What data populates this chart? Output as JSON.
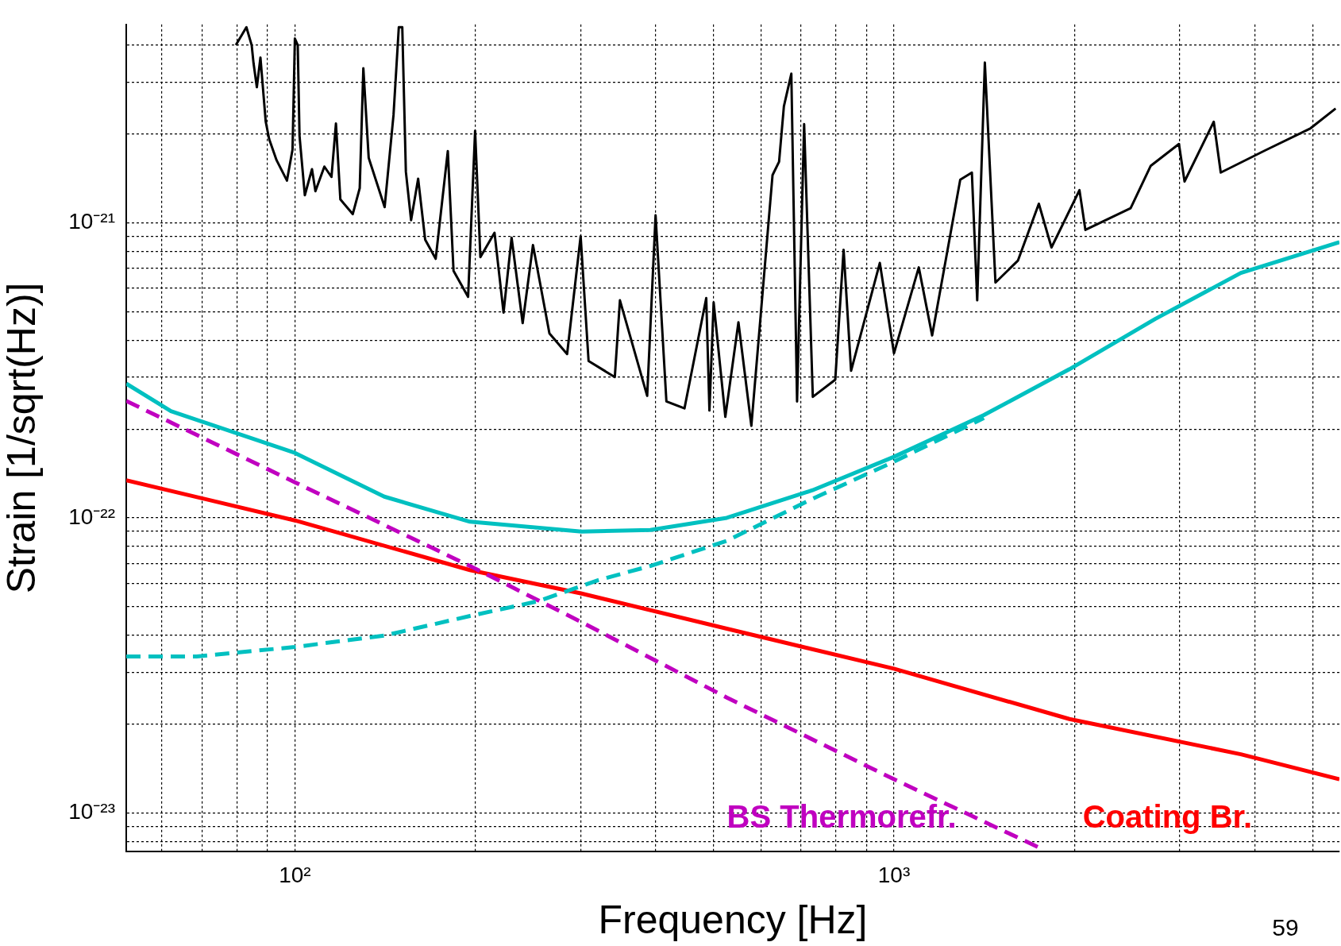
{
  "chart_data": {
    "type": "line",
    "xlabel": "Frequency [Hz]",
    "ylabel": "Strain [1/sqrt(Hz)]",
    "log": "xy",
    "grid": true,
    "marker": "none",
    "xlim": [
      52.3,
      5540
    ],
    "ylim": [
      7.4e-24,
      4.7e-21
    ],
    "xticks": [
      {
        "value": 60,
        "label": null
      },
      {
        "value": 70,
        "label": null
      },
      {
        "value": 80,
        "label": null
      },
      {
        "value": 90,
        "label": null
      },
      {
        "value": 100,
        "label": "10²"
      },
      {
        "value": 200,
        "label": null
      },
      {
        "value": 300,
        "label": null
      },
      {
        "value": 400,
        "label": null
      },
      {
        "value": 500,
        "label": null
      },
      {
        "value": 600,
        "label": null
      },
      {
        "value": 700,
        "label": null
      },
      {
        "value": 800,
        "label": null
      },
      {
        "value": 900,
        "label": null
      },
      {
        "value": 1000,
        "label": "10³"
      },
      {
        "value": 2000,
        "label": null
      },
      {
        "value": 3000,
        "label": null
      },
      {
        "value": 4000,
        "label": null
      },
      {
        "value": 5000,
        "label": null
      }
    ],
    "yticks": [
      {
        "value": 8e-24,
        "label": null
      },
      {
        "value": 9e-24,
        "label": null
      },
      {
        "value": 1e-23,
        "label": "10⁻²³"
      },
      {
        "value": 2e-23,
        "label": null
      },
      {
        "value": 3e-23,
        "label": null
      },
      {
        "value": 4e-23,
        "label": null
      },
      {
        "value": 5e-23,
        "label": null
      },
      {
        "value": 6e-23,
        "label": null
      },
      {
        "value": 7e-23,
        "label": null
      },
      {
        "value": 8e-23,
        "label": null
      },
      {
        "value": 9e-23,
        "label": null
      },
      {
        "value": 1e-22,
        "label": "10⁻²²"
      },
      {
        "value": 2e-22,
        "label": null
      },
      {
        "value": 3e-22,
        "label": null
      },
      {
        "value": 4e-22,
        "label": null
      },
      {
        "value": 5e-22,
        "label": null
      },
      {
        "value": 6e-22,
        "label": null
      },
      {
        "value": 7e-22,
        "label": null
      },
      {
        "value": 8e-22,
        "label": null
      },
      {
        "value": 9e-22,
        "label": null
      },
      {
        "value": 1e-21,
        "label": "10⁻²¹"
      },
      {
        "value": 2e-21,
        "label": null
      },
      {
        "value": 3e-21,
        "label": null
      },
      {
        "value": 4e-21,
        "label": null
      }
    ],
    "annotations": [
      "59"
    ],
    "series": [
      {
        "color": "#000000",
        "line_style": "solid",
        "x": [
          79.7,
          83.0,
          84.7,
          85.3,
          86.4,
          87.6,
          89.4,
          90.6,
          93.2,
          97.0,
          99.1,
          100,
          101.1,
          101.8,
          103.9,
          106.8,
          108.2,
          112,
          115.1,
          117.1,
          119.1,
          124.9,
          128.3,
          130.1,
          132.8,
          141.2,
          146.1,
          149.1,
          151.1,
          153.2,
          156.3,
          160.6,
          165,
          171.8,
          180,
          184,
          194.6,
          199.9,
          204,
          215.4,
          223,
          230,
          240,
          249.7,
          266,
          284.7,
          299.9,
          309.2,
          342,
          348.8,
          387.3,
          400,
          417,
          447,
          486,
          492,
          500,
          523,
          550,
          578,
          627,
          643,
          655,
          674,
          689,
          708,
          732,
          798,
          824,
          848,
          947,
          1000,
          1100,
          1158,
          1290,
          1349,
          1377,
          1418,
          1477,
          1610,
          1745,
          1832,
          2040,
          2087,
          2483,
          2683,
          2990,
          3055,
          3418,
          3511,
          4167,
          4958,
          5460
        ],
        "values": [
          4e-21,
          4.6e-21,
          4e-21,
          3.48e-21,
          2.88e-21,
          3.63e-21,
          2.2e-21,
          1.92e-21,
          1.63e-21,
          1.39e-21,
          1.77e-21,
          4.21e-21,
          4e-21,
          1.97e-21,
          1.24e-21,
          1.52e-21,
          1.28e-21,
          1.55e-21,
          1.43e-21,
          2.17e-21,
          1.2e-21,
          1.07e-21,
          1.31e-21,
          3.34e-21,
          1.66e-21,
          1.13e-21,
          2.32e-21,
          4.6e-21,
          4.6e-21,
          1.49e-21,
          1.02e-21,
          1.41e-21,
          8.76e-22,
          7.55e-22,
          1.75e-21,
          6.87e-22,
          5.61e-22,
          2.05e-21,
          7.65e-22,
          9.25e-22,
          4.96e-22,
          8.9e-22,
          4.57e-22,
          8.41e-22,
          4.22e-22,
          3.59e-22,
          9e-22,
          3.4e-22,
          3e-22,
          5.46e-22,
          2.59e-22,
          1.06e-21,
          2.48e-22,
          2.35e-22,
          5.56e-22,
          2.31e-22,
          5.37e-22,
          2.2e-22,
          4.6e-22,
          2.05e-22,
          1.45e-21,
          1.61e-21,
          2.48e-21,
          3.2e-21,
          2.48e-22,
          2.16e-21,
          2.57e-22,
          2.94e-22,
          8.1e-22,
          3.15e-22,
          7.31e-22,
          3.61e-22,
          7.06e-22,
          4.15e-22,
          1.4e-21,
          1.48e-21,
          5.46e-22,
          3.49e-21,
          6.27e-22,
          7.44e-22,
          1.16e-21,
          8.25e-22,
          1.29e-21,
          9.46e-22,
          1.12e-21,
          1.56e-21,
          1.85e-21,
          1.38e-21,
          2.2e-21,
          1.48e-21,
          1.76e-21,
          2.09e-21,
          2.44e-21
        ]
      },
      {
        "color": "#00c0c0",
        "line_style": "solid",
        "x": [
          52.3,
          62.1,
          100,
          141,
          196,
          301,
          392,
          526,
          731,
          1000,
          1413,
          1963,
          2728,
          3793,
          5540
        ],
        "values": [
          2.85e-22,
          2.3e-22,
          1.66e-22,
          1.18e-22,
          9.7e-23,
          8.98e-23,
          9.1e-23,
          1e-22,
          1.24e-22,
          1.61e-22,
          2.23e-22,
          3.19e-22,
          4.72e-22,
          6.76e-22,
          8.6e-22
        ]
      },
      {
        "color": "#00c0c0",
        "line_style": "dashed",
        "x": [
          52.3,
          68.5,
          100,
          141,
          196,
          255,
          321,
          392,
          526,
          731,
          1000,
          1413
        ],
        "values": [
          3.39e-23,
          3.39e-23,
          3.65e-23,
          3.99e-23,
          4.65e-23,
          5.22e-23,
          6.15e-23,
          6.87e-23,
          8.36e-23,
          1.16e-22,
          1.55e-22,
          2.18e-22
        ]
      },
      {
        "name": "BS Thermorefr.",
        "color": "#c000c0",
        "line_style": "dashed",
        "x": [
          52.3,
          100,
          196,
          301,
          526,
          1000,
          1778
        ],
        "values": [
          2.49e-22,
          1.32e-22,
          6.87e-23,
          4.43e-23,
          2.46e-23,
          1.3e-23,
          7.5e-24
        ]
      },
      {
        "name": "Coating Br.",
        "color": "#ff0000",
        "line_style": "solid",
        "x": [
          52.3,
          100,
          196,
          301,
          526,
          1000,
          1963,
          3793,
          5540
        ],
        "values": [
          1.34e-22,
          9.8e-23,
          6.65e-23,
          5.54e-23,
          4.21e-23,
          3.08e-23,
          2.08e-23,
          1.58e-23,
          1.3e-23
        ]
      }
    ]
  }
}
